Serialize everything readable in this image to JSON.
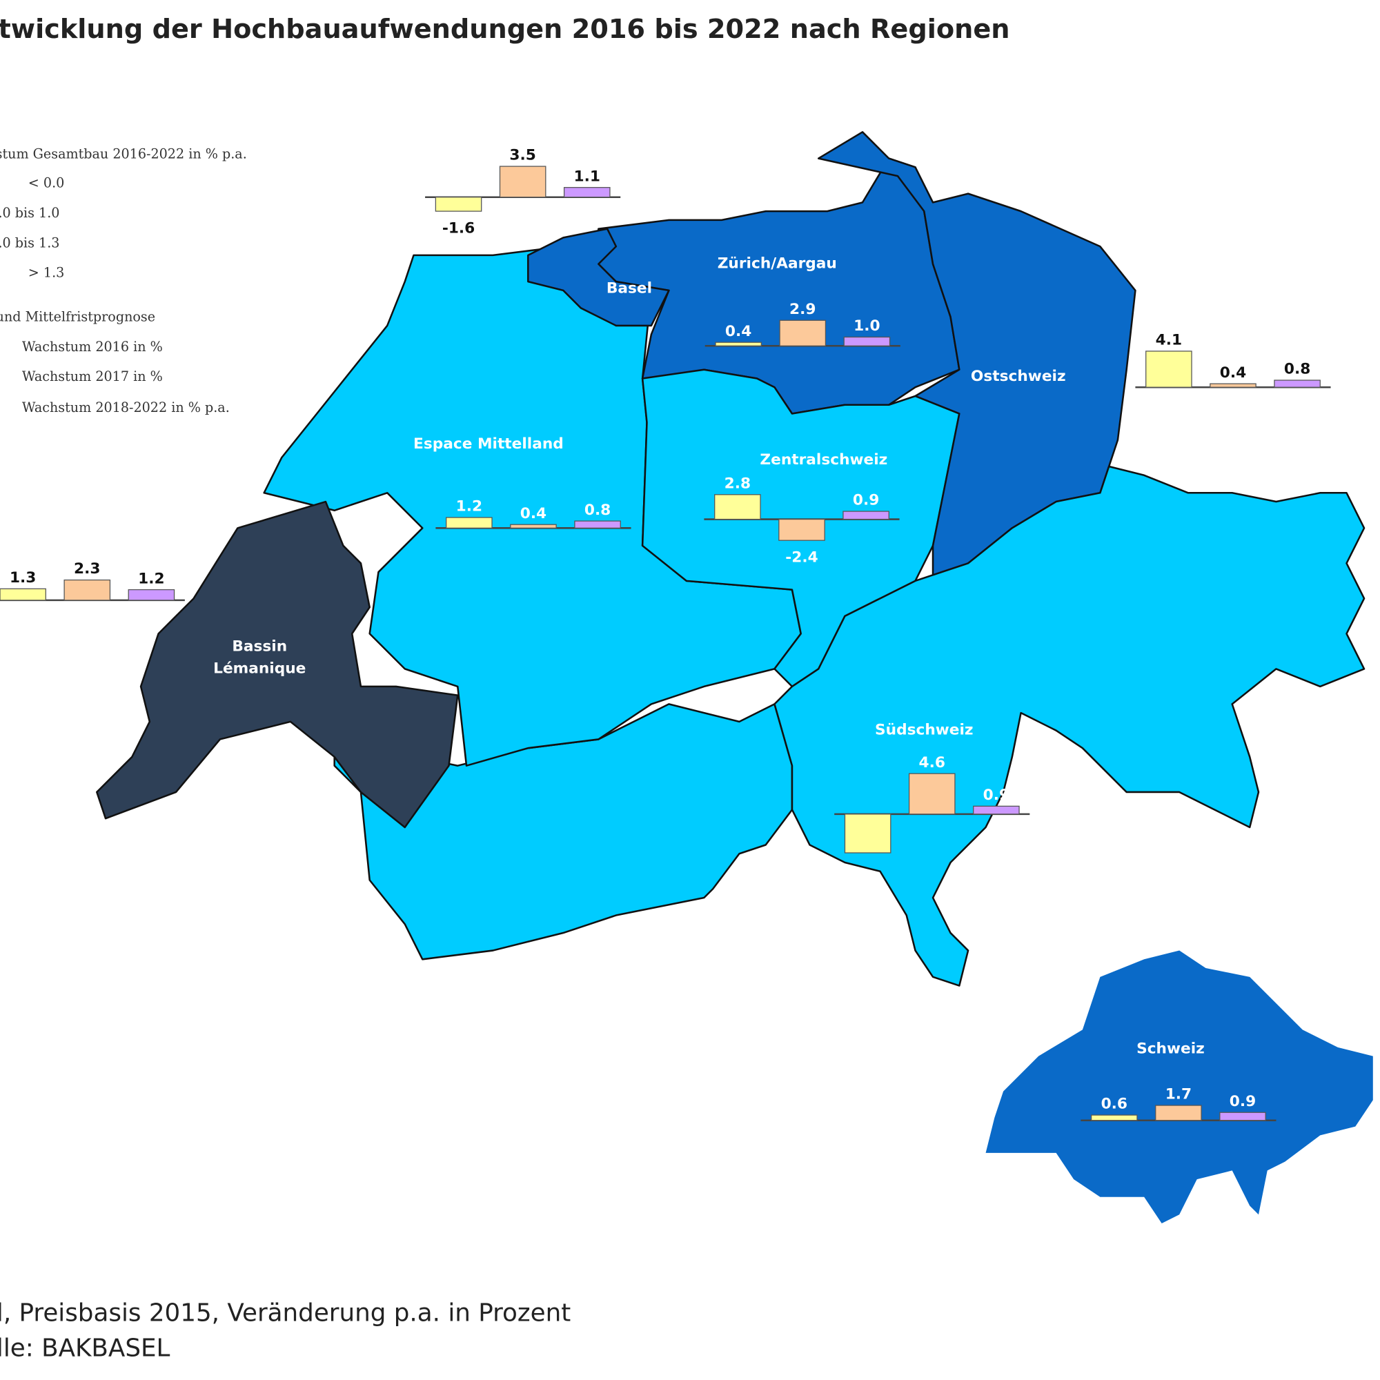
{
  "title": "twicklung der Hochbauaufwendungen 2016 bis 2022 nach Regionen",
  "legend": {
    "class_title": "stum Gesamtbau 2016-2022 in % p.a.",
    "classes": [
      "<  0.0",
      ".0  bis  1.0",
      ".0  bis  1.3",
      ">  1.3"
    ],
    "bars_title": "und Mittelfristprognose"
  },
  "chart_data": {
    "type": "bar",
    "series": [
      {
        "name": "Wachstum 2016 in %",
        "color": "#ffff99"
      },
      {
        "name": "Wachstum 2017 in %",
        "color": "#fcc99a"
      },
      {
        "name": "Wachstum 2018-2022 in % p.a.",
        "color": "#cc99ff"
      }
    ],
    "regions": [
      {
        "name": [
          "Basel"
        ],
        "values": [
          -1.6,
          3.5,
          1.1
        ],
        "value_labels": [
          "-1.6",
          "3.5",
          "1.1"
        ]
      },
      {
        "name": [
          "Zürich/Aargau"
        ],
        "values": [
          0.4,
          2.9,
          1.0
        ],
        "value_labels": [
          "0.4",
          "2.9",
          "1.0"
        ]
      },
      {
        "name": [
          "Ostschweiz"
        ],
        "values": [
          4.1,
          0.4,
          0.8
        ],
        "value_labels": [
          "4.1",
          "0.4",
          "0.8"
        ]
      },
      {
        "name": [
          "Espace Mittelland"
        ],
        "values": [
          1.2,
          0.4,
          0.8
        ],
        "value_labels": [
          "1.2",
          "0.4",
          "0.8"
        ]
      },
      {
        "name": [
          "Zentralschweiz"
        ],
        "values": [
          2.8,
          -2.4,
          0.9
        ],
        "value_labels": [
          "2.8",
          "-2.4",
          "0.9"
        ]
      },
      {
        "name": [
          "Bassin",
          "Lémanique"
        ],
        "values": [
          1.3,
          2.3,
          1.2
        ],
        "value_labels": [
          "1.3",
          "2.3",
          "1.2"
        ]
      },
      {
        "name": [
          "Südschweiz"
        ],
        "values": [
          -4.4,
          4.6,
          0.9
        ],
        "value_labels": [
          null,
          "4.6",
          "0.9"
        ]
      },
      {
        "name": [
          "Schweiz"
        ],
        "values": [
          0.6,
          1.7,
          0.9
        ],
        "value_labels": [
          "0.6",
          "1.7",
          "0.9"
        ]
      }
    ]
  },
  "footer": [
    "l, Preisbasis 2015, Veränderung p.a. in Prozent",
    "lle: BAKBASEL"
  ]
}
